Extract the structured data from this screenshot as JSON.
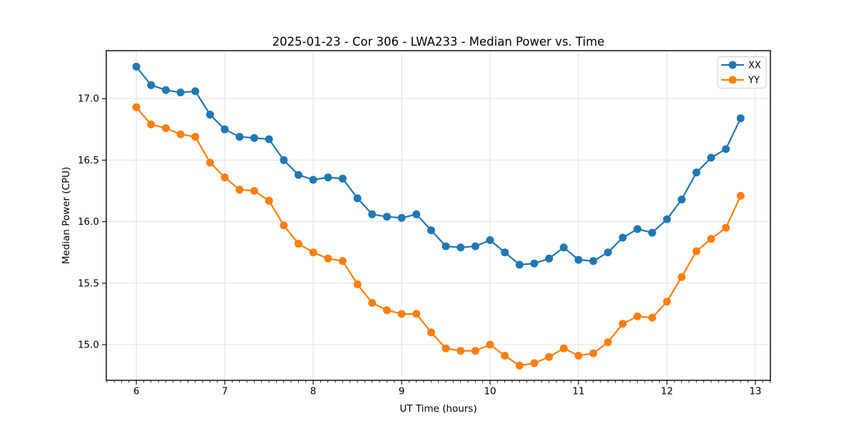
{
  "chart_data": {
    "type": "line",
    "title": "2025-01-23 - Cor 306 - LWA233 - Median Power vs. Time",
    "xlabel": "UT Time (hours)",
    "ylabel": "Median Power (CPU)",
    "xlim": [
      5.66,
      13.17
    ],
    "ylim": [
      14.71,
      17.39
    ],
    "x_ticks": [
      6,
      7,
      8,
      9,
      10,
      11,
      12,
      13
    ],
    "x_tick_labels": [
      "6",
      "7",
      "8",
      "9",
      "10",
      "11",
      "12",
      "13"
    ],
    "y_ticks": [
      15.0,
      15.5,
      16.0,
      16.5,
      17.0
    ],
    "y_tick_labels": [
      "15.0",
      "15.5",
      "16.0",
      "16.5",
      "17.0"
    ],
    "x_minor_step": 0.08333,
    "grid": true,
    "grid_color": "#e0e0e0",
    "spine_color": "#000000",
    "legend_position": "upper right",
    "x": [
      6.0,
      6.1667,
      6.3333,
      6.5,
      6.6667,
      6.8333,
      7.0,
      7.1667,
      7.3333,
      7.5,
      7.6667,
      7.8333,
      8.0,
      8.1667,
      8.3333,
      8.5,
      8.6667,
      8.8333,
      9.0,
      9.1667,
      9.3333,
      9.5,
      9.6667,
      9.8333,
      10.0,
      10.1667,
      10.3333,
      10.5,
      10.6667,
      10.8333,
      11.0,
      11.1667,
      11.3333,
      11.5,
      11.6667,
      11.8333,
      12.0,
      12.1667,
      12.3333,
      12.5,
      12.6667,
      12.8333
    ],
    "series": [
      {
        "name": "XX",
        "color": "#1f77b4",
        "values": [
          17.26,
          17.11,
          17.07,
          17.05,
          17.06,
          16.87,
          16.75,
          16.69,
          16.68,
          16.67,
          16.5,
          16.38,
          16.34,
          16.36,
          16.35,
          16.19,
          16.06,
          16.04,
          16.03,
          16.06,
          15.93,
          15.8,
          15.79,
          15.8,
          15.85,
          15.75,
          15.65,
          15.66,
          15.7,
          15.79,
          15.69,
          15.68,
          15.75,
          15.87,
          15.94,
          15.91,
          16.02,
          16.18,
          16.4,
          16.52,
          16.59,
          16.84
        ]
      },
      {
        "name": "YY",
        "color": "#ff7f0e",
        "values": [
          16.93,
          16.79,
          16.76,
          16.71,
          16.69,
          16.48,
          16.36,
          16.26,
          16.25,
          16.17,
          15.97,
          15.82,
          15.75,
          15.7,
          15.68,
          15.49,
          15.34,
          15.28,
          15.25,
          15.25,
          15.1,
          14.97,
          14.95,
          14.95,
          15.0,
          14.91,
          14.83,
          14.85,
          14.9,
          14.97,
          14.91,
          14.93,
          15.02,
          15.17,
          15.23,
          15.22,
          15.35,
          15.55,
          15.76,
          15.86,
          15.95,
          16.21
        ]
      }
    ]
  }
}
